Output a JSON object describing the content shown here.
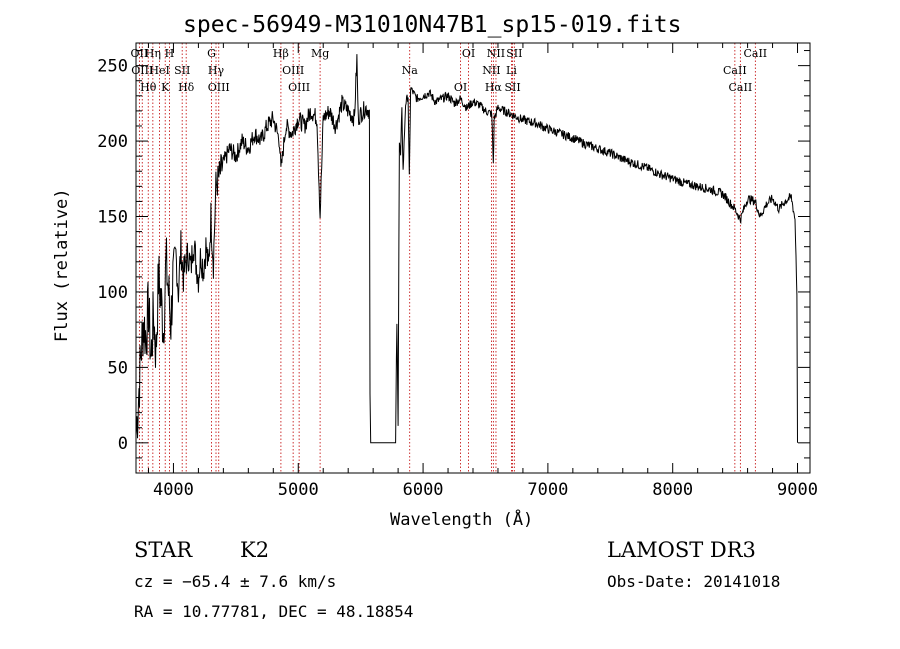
{
  "chart_data": {
    "type": "line",
    "title": "spec-56949-M31010N47B1_sp15-019.fits",
    "xlabel": "Wavelength (Å)",
    "ylabel": "Flux (relative)",
    "xlim": [
      3700,
      9100
    ],
    "ylim": [
      -20,
      265
    ],
    "xticks": [
      4000,
      5000,
      6000,
      7000,
      8000,
      9000
    ],
    "yticks": [
      0,
      50,
      100,
      150,
      200,
      250
    ],
    "series": [
      {
        "name": "spectrum",
        "x": [
          3700,
          3720,
          3740,
          3760,
          3780,
          3800,
          3820,
          3840,
          3860,
          3880,
          3900,
          3920,
          3940,
          3960,
          3980,
          4000,
          4020,
          4040,
          4060,
          4080,
          4100,
          4120,
          4140,
          4160,
          4180,
          4200,
          4220,
          4240,
          4260,
          4280,
          4300,
          4320,
          4340,
          4360,
          4380,
          4400,
          4450,
          4500,
          4550,
          4600,
          4650,
          4700,
          4750,
          4800,
          4850,
          4861,
          4900,
          4950,
          5000,
          5050,
          5100,
          5150,
          5175,
          5200,
          5250,
          5300,
          5350,
          5400,
          5450,
          5470,
          5480,
          5500,
          5540,
          5570,
          5575,
          5580,
          5600,
          5650,
          5700,
          5750,
          5780,
          5790,
          5800,
          5810,
          5820,
          5830,
          5840,
          5860,
          5880,
          5890,
          5900,
          5950,
          6000,
          6050,
          6100,
          6150,
          6200,
          6250,
          6300,
          6350,
          6400,
          6450,
          6500,
          6550,
          6563,
          6570,
          6600,
          6650,
          6700,
          6750,
          6800,
          6900,
          7000,
          7100,
          7200,
          7300,
          7400,
          7500,
          7600,
          7700,
          7800,
          7900,
          8000,
          8100,
          8200,
          8300,
          8400,
          8498,
          8542,
          8600,
          8662,
          8700,
          8750,
          8800,
          8850,
          8900,
          8950,
          8980,
          8995,
          9000
        ],
        "values": [
          5,
          30,
          60,
          80,
          70,
          90,
          55,
          85,
          60,
          110,
          95,
          75,
          120,
          100,
          80,
          115,
          125,
          100,
          130,
          110,
          120,
          125,
          115,
          135,
          120,
          110,
          125,
          115,
          130,
          115,
          150,
          120,
          170,
          175,
          180,
          185,
          195,
          190,
          200,
          195,
          205,
          200,
          210,
          215,
          200,
          180,
          210,
          205,
          215,
          210,
          220,
          215,
          150,
          215,
          220,
          210,
          225,
          220,
          215,
          255,
          215,
          218,
          222,
          220,
          30,
          0,
          0,
          0,
          0,
          0,
          0,
          80,
          10,
          200,
          190,
          220,
          180,
          225,
          230,
          175,
          235,
          228,
          230,
          232,
          226,
          228,
          230,
          225,
          228,
          222,
          226,
          224,
          220,
          218,
          185,
          215,
          222,
          220,
          218,
          216,
          214,
          212,
          208,
          205,
          202,
          198,
          195,
          192,
          188,
          185,
          182,
          178,
          175,
          172,
          170,
          168,
          165,
          155,
          148,
          162,
          160,
          150,
          158,
          162,
          155,
          160,
          163,
          148,
          100,
          0
        ]
      }
    ],
    "lines": [
      {
        "label": "OII",
        "x": 3727
      },
      {
        "label": "OIII",
        "x": 3750
      },
      {
        "label": "Hθ",
        "x": 3798
      },
      {
        "label": "Hη",
        "x": 3835
      },
      {
        "label": "HeI",
        "x": 3889
      },
      {
        "label": "K",
        "x": 3934
      },
      {
        "label": "H",
        "x": 3968
      },
      {
        "label": "SII",
        "x": 4070
      },
      {
        "label": "Hδ",
        "x": 4102
      },
      {
        "label": "G",
        "x": 4305
      },
      {
        "label": "Hγ",
        "x": 4341
      },
      {
        "label": "OIII",
        "x": 4363
      },
      {
        "label": "Hβ",
        "x": 4861
      },
      {
        "label": "OIII",
        "x": 4959
      },
      {
        "label": "OIII",
        "x": 5007
      },
      {
        "label": "Mg",
        "x": 5175
      },
      {
        "label": "Na",
        "x": 5893
      },
      {
        "label": "OI",
        "x": 6300
      },
      {
        "label": "OI",
        "x": 6364
      },
      {
        "label": "NII",
        "x": 6548
      },
      {
        "label": "Hα",
        "x": 6563
      },
      {
        "label": "NII",
        "x": 6584
      },
      {
        "label": "Li",
        "x": 6708
      },
      {
        "label": "SII",
        "x": 6717
      },
      {
        "label": "SII",
        "x": 6731
      },
      {
        "label": "CaII",
        "x": 8498
      },
      {
        "label": "CaII",
        "x": 8542
      },
      {
        "label": "CaII",
        "x": 8662
      }
    ]
  },
  "info": {
    "object_class": "STAR",
    "subclass": "K2",
    "cz": "cz = −65.4 ± 7.6 km/s",
    "radec": "RA =  10.77781, DEC =  48.18854",
    "survey": "LAMOST DR3",
    "obs_date": "Obs-Date: 20141018"
  }
}
